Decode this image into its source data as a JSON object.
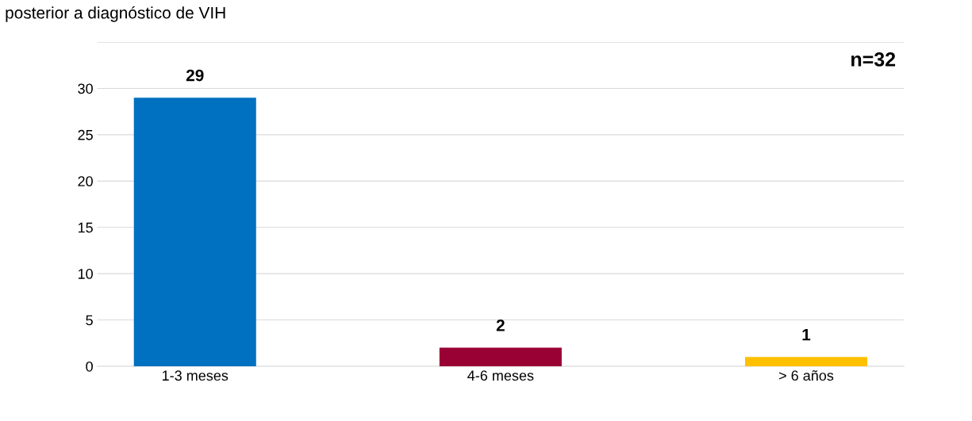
{
  "chart_data": {
    "type": "bar",
    "title": "posterior a diagnóstico de VIH",
    "categories": [
      "1-3 meses",
      "4-6 meses",
      "> 6 años"
    ],
    "values": [
      29,
      2,
      1
    ],
    "colors": [
      "#0070c0",
      "#990033",
      "#ffc000"
    ],
    "ylim": [
      0,
      35
    ],
    "yticks": [
      0,
      5,
      10,
      15,
      20,
      25,
      30,
      {
        "value": 35,
        "label": null
      }
    ],
    "grid": "y",
    "data_labels": true,
    "annotations": [
      "n=32"
    ]
  }
}
